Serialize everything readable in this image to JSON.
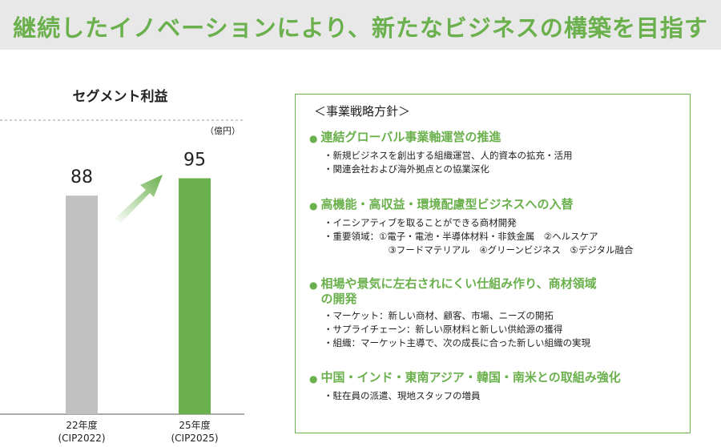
{
  "header": {
    "title": "継続したイノベーションにより、新たなビジネスの構築を目指す"
  },
  "chart_data": {
    "type": "bar",
    "title": "セグメント利益",
    "unit": "（億円）",
    "categories": [
      [
        "22年度",
        "(CIP2022)"
      ],
      [
        "25年度",
        "(CIP2025)"
      ]
    ],
    "values": [
      88,
      95
    ],
    "colors": [
      "#c0c0c0",
      "#6ab04c"
    ],
    "arrow_color": "#6ab04c"
  },
  "strategy": {
    "heading": "＜事業戦略方針＞",
    "bullet": "●",
    "sections": [
      {
        "head": [
          "連結グローバル事業軸運営の推進"
        ],
        "lines": [
          "・新規ビジネスを創出する組織運営、人的資本の拡充・活用",
          "・関連会社および海外拠点との協業深化"
        ]
      },
      {
        "head": [
          "高機能・高収益・環境配慮型ビジネスへの入替"
        ],
        "lines": [
          "・イニシアティブを取ることができる商材開発",
          "・重要領域：①電子・電池・半導体材料・非鉄金属　②ヘルスケア",
          "　　　　　　　③フードマテリアル　④グリーンビジネス　⑤デジタル融合"
        ]
      },
      {
        "head": [
          "相場や景気に左右されにくい仕組み作り、商材領域",
          "の開発"
        ],
        "lines": [
          "・マーケット：新しい商材、顧客、市場、ニーズの開拓",
          "・サプライチェーン：新しい原材料と新しい供給源の獲得",
          "・組織：マーケット主導で、次の成長に合った新しい組織の実現"
        ]
      },
      {
        "head": [
          "中国・インド・東南アジア・韓国・南米との取組み強化"
        ],
        "lines": [
          "・駐在員の派遣、現地スタッフの増員"
        ]
      }
    ]
  }
}
